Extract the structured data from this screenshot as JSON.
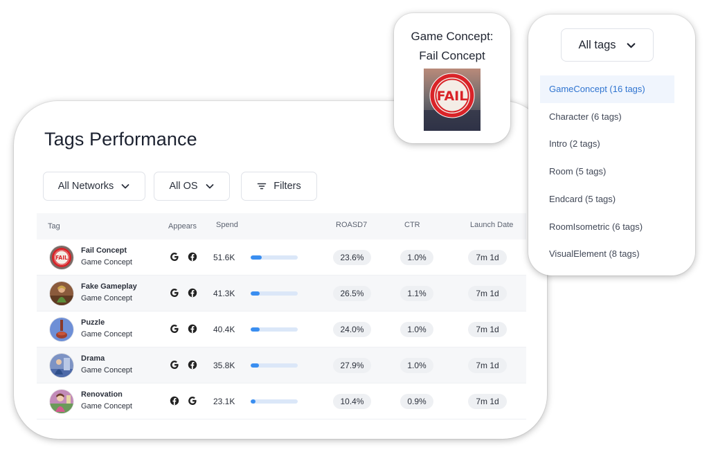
{
  "main": {
    "title": "Tags Performance",
    "filters": {
      "networks_label": "All Networks",
      "os_label": "All OS",
      "filters_label": "Filters"
    },
    "table": {
      "columns": {
        "tag": "Tag",
        "appears": "Appears",
        "spend": "Spend",
        "roasd7": "ROASD7",
        "ctr": "CTR",
        "launch_date": "Launch Date"
      },
      "rows": [
        {
          "name": "Fail Concept",
          "category": "Game Concept",
          "networks": [
            "google-icon",
            "facebook-icon"
          ],
          "spend": "51.6K",
          "spend_fraction": 0.24,
          "roasd7": "23.6%",
          "ctr": "1.0%",
          "launch": "7m 1d",
          "thumb": "fail"
        },
        {
          "name": "Fake Gameplay",
          "category": "Game Concept",
          "networks": [
            "google-icon",
            "facebook-icon"
          ],
          "spend": "41.3K",
          "spend_fraction": 0.19,
          "roasd7": "26.5%",
          "ctr": "1.1%",
          "launch": "7m 1d",
          "thumb": "gameplay"
        },
        {
          "name": "Puzzle",
          "category": "Game Concept",
          "networks": [
            "google-icon",
            "facebook-icon"
          ],
          "spend": "40.4K",
          "spend_fraction": 0.19,
          "roasd7": "24.0%",
          "ctr": "1.0%",
          "launch": "7m 1d",
          "thumb": "puzzle"
        },
        {
          "name": "Drama",
          "category": "Game Concept",
          "networks": [
            "google-icon",
            "facebook-icon"
          ],
          "spend": "35.8K",
          "spend_fraction": 0.17,
          "roasd7": "27.9%",
          "ctr": "1.0%",
          "launch": "7m 1d",
          "thumb": "drama"
        },
        {
          "name": "Renovation",
          "category": "Game Concept",
          "networks": [
            "facebook-icon",
            "google-icon"
          ],
          "spend": "23.1K",
          "spend_fraction": 0.11,
          "roasd7": "10.4%",
          "ctr": "0.9%",
          "launch": "7m 1d",
          "thumb": "renovation"
        }
      ]
    }
  },
  "concept_card": {
    "title_line1": "Game Concept:",
    "title_line2": "Fail Concept",
    "image_badge": "FAIL"
  },
  "tags_dropdown": {
    "selected": "All tags",
    "options": [
      {
        "label": "GameConcept (16 tags)",
        "active": true
      },
      {
        "label": "Character (6 tags)",
        "active": false
      },
      {
        "label": "Intro (2 tags)",
        "active": false
      },
      {
        "label": "Room (5 tags)",
        "active": false
      },
      {
        "label": "Endcard (5 tags)",
        "active": false
      },
      {
        "label": "RoomIsometric (6 tags)",
        "active": false
      },
      {
        "label": "VisualElement (8 tags)",
        "active": false
      }
    ]
  },
  "colors": {
    "accent": "#3a8ef0",
    "bar_track": "#dbe7f8",
    "active_option_bg": "#f0f5fd",
    "active_option_text": "#2f74d0",
    "pill_bg": "#eef0f3"
  }
}
